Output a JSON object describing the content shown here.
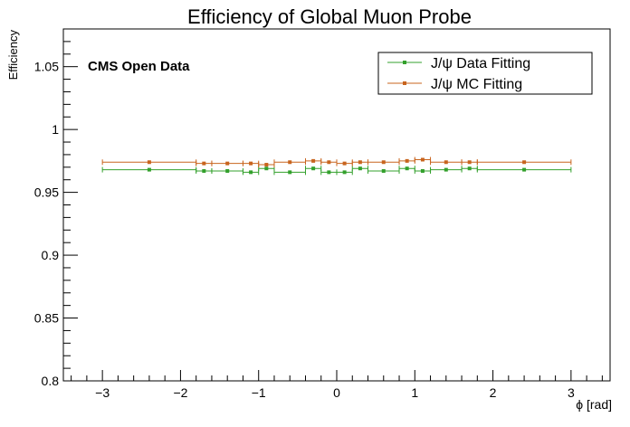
{
  "chart_data": {
    "type": "scatter",
    "title": "Efficiency of Global Muon Probe",
    "xlabel": "ϕ [rad]",
    "ylabel": "Efficiency",
    "annotation": "CMS Open Data",
    "xlim": [
      -3.5,
      3.5
    ],
    "ylim": [
      0.8,
      1.08
    ],
    "xticks": [
      -3,
      -2,
      -1,
      0,
      1,
      2,
      3
    ],
    "xtick_labels": [
      "−3",
      "−2",
      "−1",
      "0",
      "1",
      "2",
      "3"
    ],
    "yticks": [
      0.8,
      0.85,
      0.9,
      0.95,
      1,
      1.05
    ],
    "ytick_labels": [
      "0.8",
      "0.85",
      "0.9",
      "0.95",
      "1",
      "1.05"
    ],
    "grid": false,
    "legend_position": "top-right",
    "bin_edges": [
      -3.0,
      -1.8,
      -1.6,
      -1.2,
      -1.0,
      -0.8,
      -0.4,
      -0.2,
      0.0,
      0.2,
      0.4,
      0.8,
      1.0,
      1.2,
      1.6,
      1.8,
      3.0
    ],
    "series": [
      {
        "name": "J/ψ Data Fitting",
        "color": "#33a02c",
        "x": [
          -2.4,
          -1.7,
          -1.4,
          -1.1,
          -0.9,
          -0.6,
          -0.3,
          -0.1,
          0.1,
          0.3,
          0.6,
          0.9,
          1.1,
          1.4,
          1.7,
          2.4
        ],
        "y": [
          0.968,
          0.967,
          0.967,
          0.966,
          0.969,
          0.966,
          0.969,
          0.966,
          0.966,
          0.969,
          0.967,
          0.969,
          0.967,
          0.968,
          0.969,
          0.968
        ]
      },
      {
        "name": "J/ψ MC Fitting",
        "color": "#c8641e",
        "x": [
          -2.4,
          -1.7,
          -1.4,
          -1.1,
          -0.9,
          -0.6,
          -0.3,
          -0.1,
          0.1,
          0.3,
          0.6,
          0.9,
          1.1,
          1.4,
          1.7,
          2.4
        ],
        "y": [
          0.974,
          0.973,
          0.973,
          0.973,
          0.972,
          0.974,
          0.975,
          0.974,
          0.973,
          0.974,
          0.974,
          0.975,
          0.976,
          0.974,
          0.974,
          0.974
        ]
      }
    ]
  }
}
